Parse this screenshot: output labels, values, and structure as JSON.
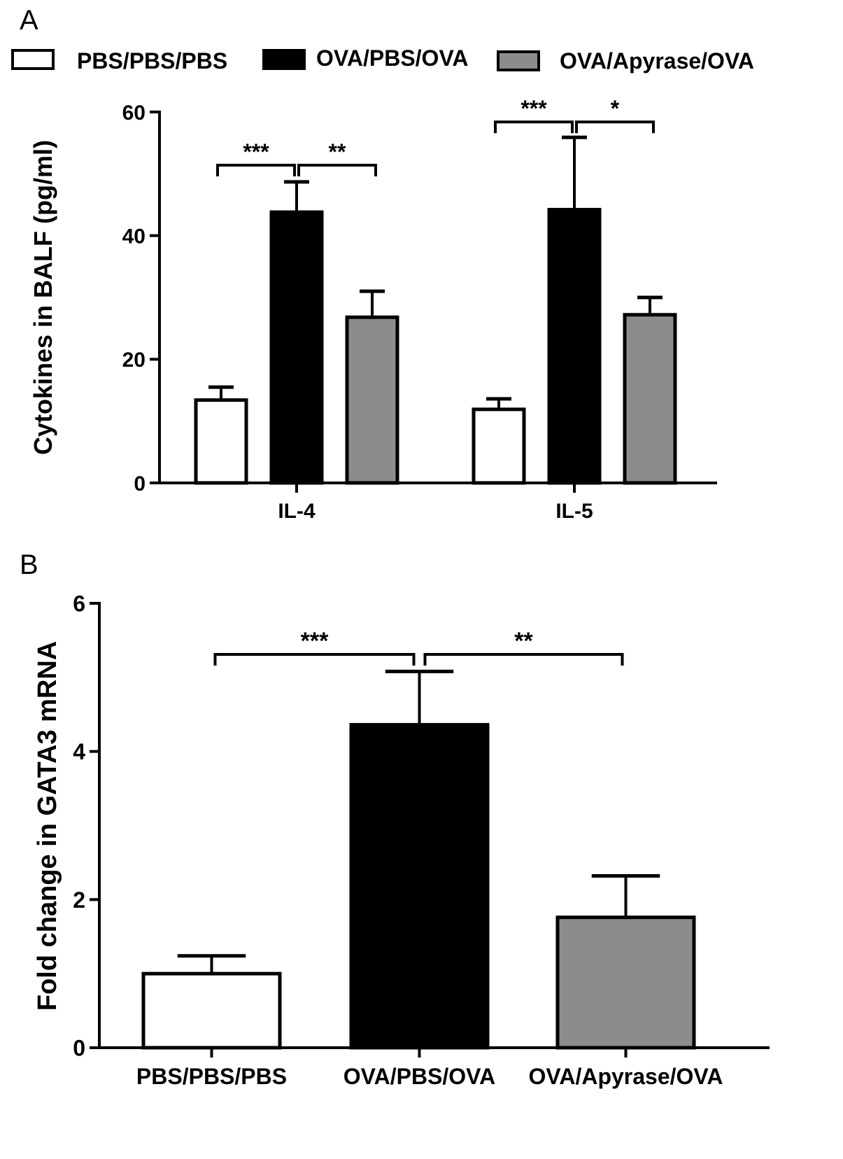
{
  "chart_data": [
    {
      "type": "bar",
      "panel_label": "A",
      "ylabel": "Cytokines in BALF (pg/ml)",
      "xlabel": "",
      "ylim": [
        0,
        60
      ],
      "yticks": [
        "0",
        "20",
        "40",
        "60"
      ],
      "categories": [
        "IL-4",
        "IL-5"
      ],
      "legend_position": "top",
      "series": [
        {
          "name": "PBS/PBS/PBS",
          "color": "#ffffff",
          "values": [
            13.4,
            11.9
          ],
          "errors": [
            2.1,
            1.7
          ]
        },
        {
          "name": "OVA/PBS/OVA",
          "color": "#000000",
          "values": [
            43.8,
            44.2
          ],
          "errors": [
            4.9,
            11.7
          ]
        },
        {
          "name": "OVA/Apyrase/OVA",
          "color": "#8c8c8c",
          "values": [
            26.8,
            27.2
          ],
          "errors": [
            4.2,
            2.8
          ]
        }
      ],
      "significance": [
        {
          "category": "IL-4",
          "from": 0,
          "to": 1,
          "label": "***"
        },
        {
          "category": "IL-4",
          "from": 1,
          "to": 2,
          "label": "**"
        },
        {
          "category": "IL-5",
          "from": 0,
          "to": 1,
          "label": "***"
        },
        {
          "category": "IL-5",
          "from": 1,
          "to": 2,
          "label": "*"
        }
      ]
    },
    {
      "type": "bar",
      "panel_label": "B",
      "ylabel": "Fold change in GATA3 mRNA",
      "xlabel": "",
      "ylim": [
        0,
        6
      ],
      "yticks": [
        "0",
        "2",
        "4",
        "6"
      ],
      "categories": [
        "PBS/PBS/PBS",
        "OVA/PBS/OVA",
        "OVA/Apyrase/OVA"
      ],
      "colors": [
        "#ffffff",
        "#000000",
        "#8c8c8c"
      ],
      "values": [
        1.0,
        4.36,
        1.76
      ],
      "errors": [
        0.24,
        0.72,
        0.56
      ],
      "significance": [
        {
          "from": 0,
          "to": 1,
          "label": "***"
        },
        {
          "from": 1,
          "to": 2,
          "label": "**"
        }
      ]
    }
  ]
}
